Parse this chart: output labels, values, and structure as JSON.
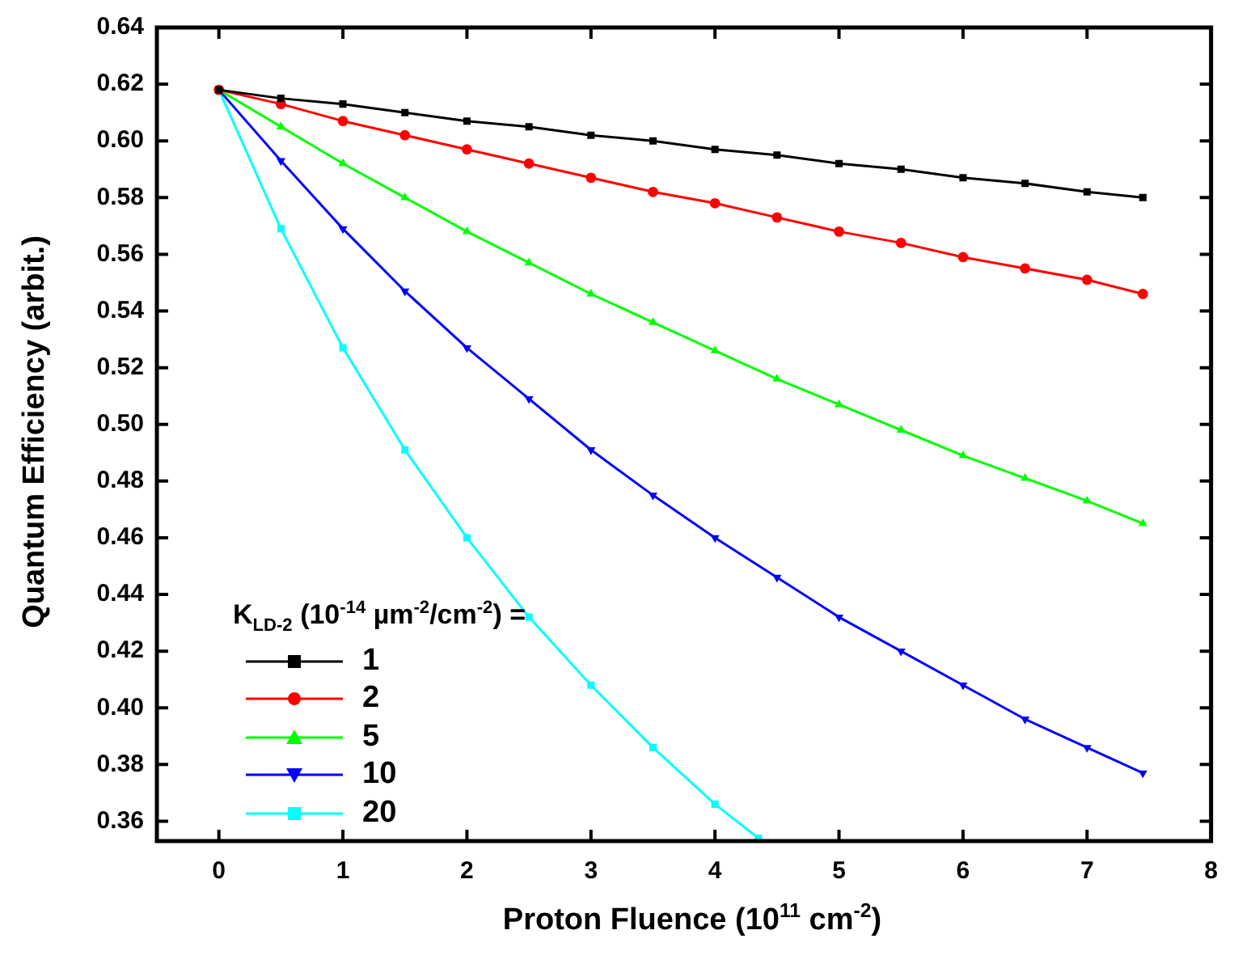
{
  "chart_data": {
    "type": "line",
    "xlabel": "Proton Fluence (10$^{11}$ cm$^{-2}$)",
    "ylabel": "Quantum Efficiency (arbit.)",
    "legend_title": "K$_{LD-2}$ (10$^{-14}$ µm$^{-2}$/cm$^{-2}$) =",
    "legend": "bottom left",
    "grid": false,
    "line_style": "solid",
    "xlim": [
      -0.5,
      8
    ],
    "xticks": [
      0,
      1,
      2,
      3,
      4,
      5,
      6,
      7,
      8
    ],
    "ylim": [
      0.353,
      0.64
    ],
    "yticks": [
      0.36,
      0.38,
      {
        "value": 0.4,
        "label": "0.40"
      },
      0.42,
      0.44,
      0.46,
      0.48,
      {
        "value": 0.5,
        "label": "0.50"
      },
      0.52,
      0.54,
      0.56,
      0.58,
      {
        "value": 0.6,
        "label": "0.60"
      },
      0.62,
      0.64
    ],
    "series": [
      {
        "name": "1",
        "color": "#000000",
        "marker": "square",
        "x": [
          0,
          0.5,
          1,
          1.5,
          2,
          2.5,
          3,
          3.5,
          4,
          4.5,
          5,
          5.5,
          6,
          6.5,
          7,
          7.45
        ],
        "values": [
          0.618,
          0.615,
          0.613,
          0.61,
          0.607,
          0.605,
          0.602,
          0.6,
          0.597,
          0.595,
          0.592,
          0.59,
          0.587,
          0.585,
          0.582,
          0.58
        ]
      },
      {
        "name": "2",
        "color": "#ff0000",
        "marker": "circle",
        "x": [
          0,
          0.5,
          1,
          1.5,
          2,
          2.5,
          3,
          3.5,
          4,
          4.5,
          5,
          5.5,
          6,
          6.5,
          7,
          7.45
        ],
        "values": [
          0.618,
          0.613,
          0.607,
          0.602,
          0.597,
          0.592,
          0.587,
          0.582,
          0.578,
          0.573,
          0.568,
          0.564,
          0.559,
          0.555,
          0.551,
          0.546
        ]
      },
      {
        "name": "5",
        "color": "#00ff00",
        "marker": "triangle",
        "x": [
          0,
          0.5,
          1,
          1.5,
          2,
          2.5,
          3,
          3.5,
          4,
          4.5,
          5,
          5.5,
          6,
          6.5,
          7,
          7.45
        ],
        "values": [
          0.618,
          0.605,
          0.592,
          0.58,
          0.568,
          0.557,
          0.546,
          0.536,
          0.526,
          0.516,
          0.507,
          0.498,
          0.489,
          0.481,
          0.473,
          0.465
        ]
      },
      {
        "name": "10",
        "color": "#0000ff",
        "marker": "triangle-down",
        "x": [
          0,
          0.5,
          1,
          1.5,
          2,
          2.5,
          3,
          3.5,
          4,
          4.5,
          5,
          5.5,
          6,
          6.5,
          7,
          7.45
        ],
        "values": [
          0.618,
          0.593,
          0.569,
          0.547,
          0.527,
          0.509,
          0.491,
          0.475,
          0.46,
          0.446,
          0.432,
          0.42,
          0.408,
          0.396,
          0.386,
          0.377
        ]
      },
      {
        "name": "20",
        "color": "#00ffff",
        "marker": "square",
        "x": [
          0,
          0.5,
          1,
          1.5,
          2,
          2.5,
          3,
          3.5,
          4,
          4.35
        ],
        "values": [
          0.618,
          0.569,
          0.527,
          0.491,
          0.46,
          0.432,
          0.408,
          0.386,
          0.366,
          0.354
        ]
      }
    ]
  }
}
